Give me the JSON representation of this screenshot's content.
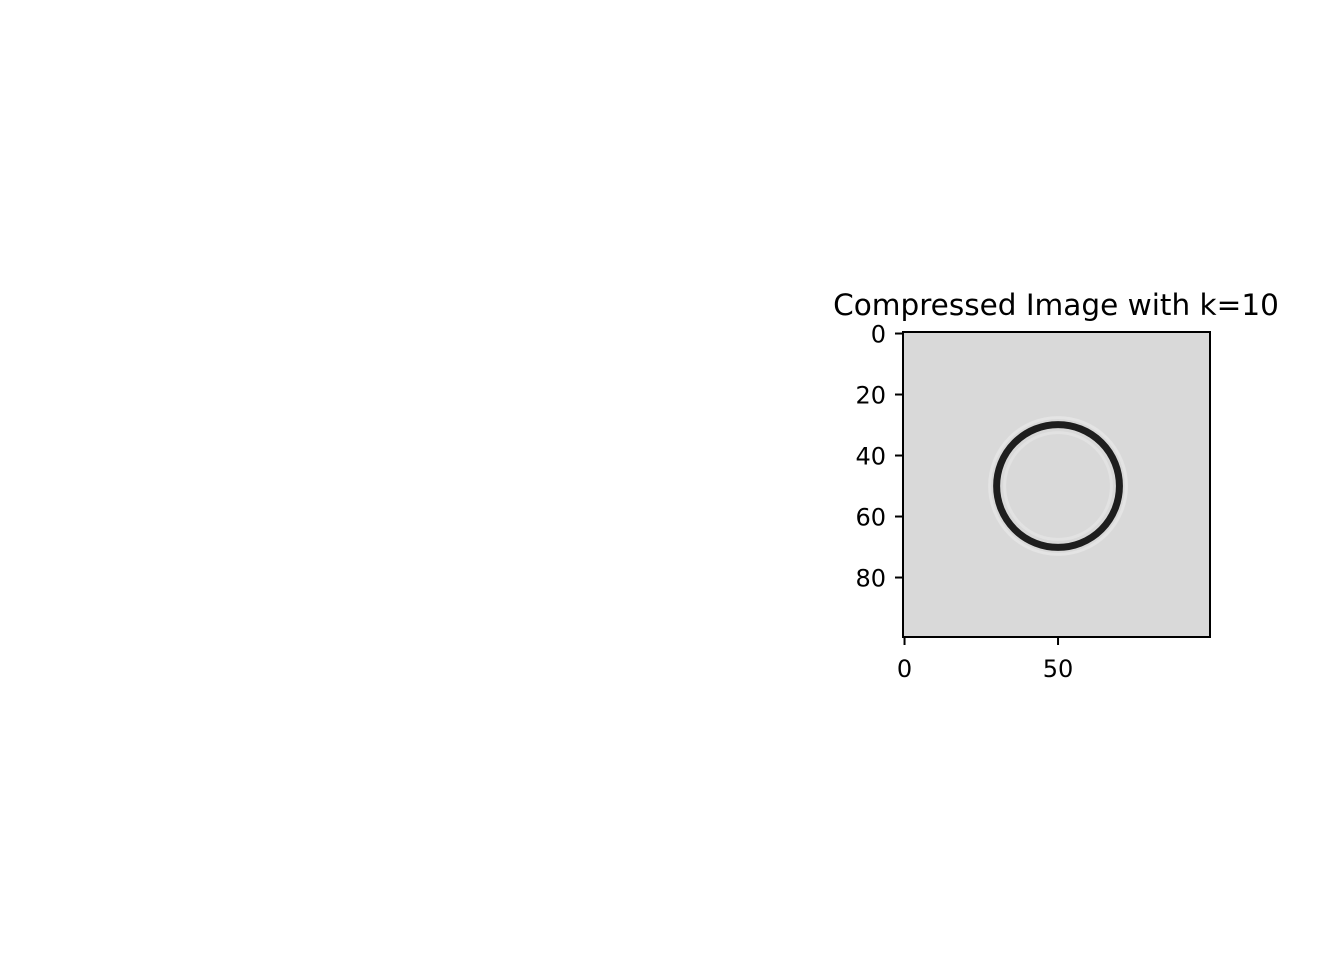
{
  "chart_data": {
    "type": "heatmap",
    "title": "Compressed Image with k=10",
    "xlabel": "",
    "ylabel": "",
    "image_size": [
      100,
      100
    ],
    "xlim": [
      0,
      100
    ],
    "ylim": [
      100,
      0
    ],
    "x_ticks": [
      0,
      50
    ],
    "y_ticks": [
      0,
      20,
      40,
      60,
      80
    ],
    "colormap": "gray",
    "background_value": 0.85,
    "circle": {
      "center": [
        50,
        50
      ],
      "radius": 20,
      "line_value": 0.12
    },
    "grid": false,
    "colors": {
      "background": "#d9d9d9",
      "circle": "#1e1e1e",
      "frame": "#000000"
    }
  }
}
